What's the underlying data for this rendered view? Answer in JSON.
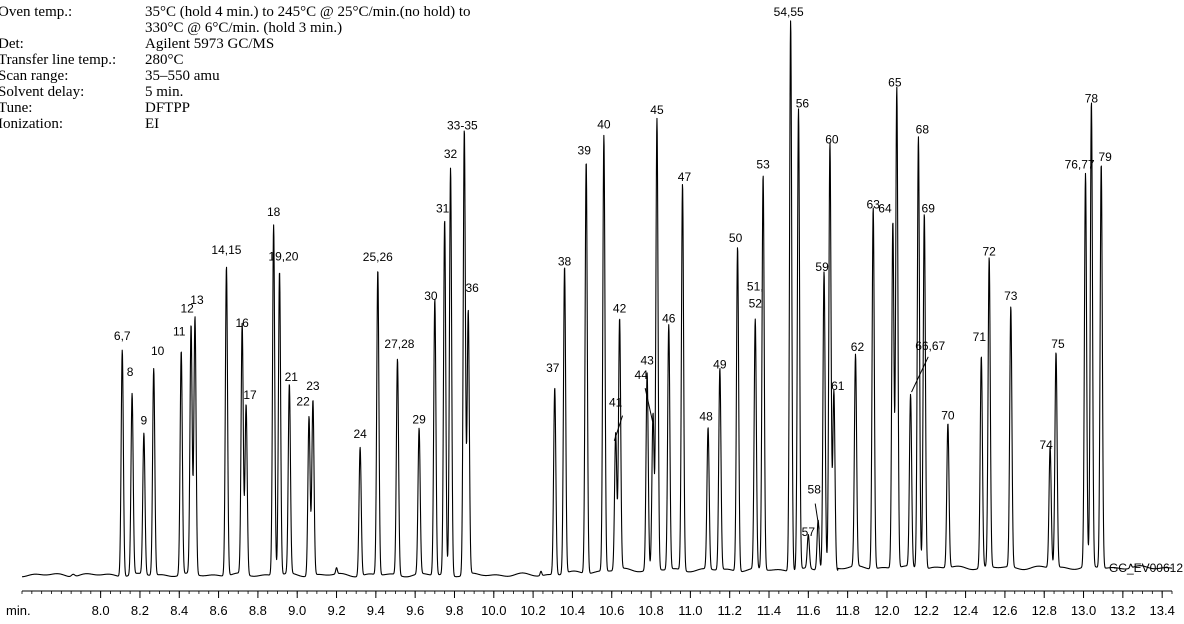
{
  "conditions": [
    {
      "label": "Oven temp.:",
      "value": "35°C (hold 4 min.) to 245°C @ 25°C/min.(no hold) to"
    },
    {
      "label": "",
      "value": "330°C @ 6°C/min. (hold 3 min.)"
    },
    {
      "label": "Det:",
      "value": "Agilent 5973 GC/MS"
    },
    {
      "label": "Transfer line temp.:",
      "value": "280°C"
    },
    {
      "label": "Scan range:",
      "value": "35–550 amu"
    },
    {
      "label": "Solvent delay:",
      "value": "5 min."
    },
    {
      "label": "Tune:",
      "value": "DFTPP"
    },
    {
      "label": "Ionization:",
      "value": "EI"
    }
  ],
  "chart_data": {
    "type": "line",
    "description_axis": "retention time",
    "x_unit_label": "min.",
    "xlim": [
      7.6,
      13.45
    ],
    "ylim": [
      0,
      100
    ],
    "x_ticks": [
      8.0,
      8.2,
      8.4,
      8.6,
      8.8,
      9.0,
      9.2,
      9.4,
      9.6,
      9.8,
      10.0,
      10.2,
      10.4,
      10.6,
      10.8,
      11.0,
      11.2,
      11.4,
      11.6,
      11.8,
      12.0,
      12.2,
      12.4,
      12.6,
      12.8,
      13.0,
      13.2,
      13.4
    ],
    "x_tick_labels": [
      "8.0",
      "8.2",
      "8.4",
      "8.6",
      "8.8",
      "9.0",
      "9.2",
      "9.4",
      "9.6",
      "9.8",
      "10.0",
      "10.2",
      "10.4",
      "10.6",
      "10.8",
      "11.0",
      "11.2",
      "11.4",
      "11.6",
      "11.8",
      "12.0",
      "12.2",
      "12.4",
      "12.6",
      "12.8",
      "13.0",
      "13.2",
      "13.4"
    ],
    "code": "GC_EV00612",
    "peaks": [
      {
        "t": 8.11,
        "h": 40.5
      },
      {
        "t": 8.16,
        "h": 32.3
      },
      {
        "t": 8.22,
        "h": 25.2
      },
      {
        "t": 8.27,
        "h": 36.9
      },
      {
        "t": 8.41,
        "h": 40.0
      },
      {
        "t": 8.46,
        "h": 44.4
      },
      {
        "t": 8.48,
        "h": 46.0
      },
      {
        "t": 8.64,
        "h": 55.3
      },
      {
        "t": 8.72,
        "h": 44.6
      },
      {
        "t": 8.74,
        "h": 30.4
      },
      {
        "t": 8.88,
        "h": 62.6
      },
      {
        "t": 8.91,
        "h": 54.3
      },
      {
        "t": 8.96,
        "h": 33.8
      },
      {
        "t": 9.06,
        "h": 28.5
      },
      {
        "t": 9.08,
        "h": 31.3
      },
      {
        "t": 9.32,
        "h": 23.0
      },
      {
        "t": 9.41,
        "h": 54.5
      },
      {
        "t": 9.51,
        "h": 38.6
      },
      {
        "t": 9.62,
        "h": 26.0
      },
      {
        "t": 9.7,
        "h": 49.3
      },
      {
        "t": 9.75,
        "h": 63.4
      },
      {
        "t": 9.78,
        "h": 72.8
      },
      {
        "t": 9.85,
        "h": 79.6
      },
      {
        "t": 9.87,
        "h": 47.0
      },
      {
        "t": 10.31,
        "h": 33.4
      },
      {
        "t": 10.36,
        "h": 54.9
      },
      {
        "t": 10.47,
        "h": 73.7
      },
      {
        "t": 10.56,
        "h": 77.8
      },
      {
        "t": 10.62,
        "h": 24.5
      },
      {
        "t": 10.64,
        "h": 44.8
      },
      {
        "t": 10.78,
        "h": 35.2
      },
      {
        "t": 10.81,
        "h": 27.8
      },
      {
        "t": 10.83,
        "h": 80.5
      },
      {
        "t": 10.89,
        "h": 43.7
      },
      {
        "t": 10.96,
        "h": 69.1
      },
      {
        "t": 11.09,
        "h": 25.3
      },
      {
        "t": 11.15,
        "h": 36.0
      },
      {
        "t": 11.24,
        "h": 58.0
      },
      {
        "t": 11.33,
        "h": 44.5
      },
      {
        "t": 11.37,
        "h": 70.5
      },
      {
        "t": 11.51,
        "h": 98.4
      },
      {
        "t": 11.55,
        "h": 82.3
      },
      {
        "t": 11.6,
        "h": 6.0
      },
      {
        "t": 11.65,
        "h": 9.0
      },
      {
        "t": 11.68,
        "h": 53.4
      },
      {
        "t": 11.71,
        "h": 76.3
      },
      {
        "t": 11.73,
        "h": 32.0
      },
      {
        "t": 11.84,
        "h": 37.8
      },
      {
        "t": 11.93,
        "h": 64.6
      },
      {
        "t": 12.03,
        "h": 61.9
      },
      {
        "t": 12.05,
        "h": 85.8
      },
      {
        "t": 12.12,
        "h": 30.7
      },
      {
        "t": 12.16,
        "h": 77.2
      },
      {
        "t": 12.19,
        "h": 63.6
      },
      {
        "t": 12.31,
        "h": 25.8
      },
      {
        "t": 12.48,
        "h": 37.8
      },
      {
        "t": 12.52,
        "h": 55.3
      },
      {
        "t": 12.63,
        "h": 46.5
      },
      {
        "t": 12.83,
        "h": 21.6
      },
      {
        "t": 12.86,
        "h": 38.5
      },
      {
        "t": 13.01,
        "h": 70.2
      },
      {
        "t": 13.04,
        "h": 83.0
      },
      {
        "t": 13.09,
        "h": 72.3
      }
    ],
    "annotations": [
      {
        "text": "6,7",
        "t": 8.11,
        "h": 42.5
      },
      {
        "text": "8",
        "t": 8.15,
        "h": 36.1
      },
      {
        "text": "9",
        "t": 8.22,
        "h": 27.4
      },
      {
        "text": "10",
        "t": 8.29,
        "h": 39.8
      },
      {
        "text": "11",
        "t": 8.4,
        "h": 43.3
      },
      {
        "text": "12",
        "t": 8.44,
        "h": 47.4
      },
      {
        "text": "13",
        "t": 8.49,
        "h": 48.9
      },
      {
        "text": "14,15",
        "t": 8.64,
        "h": 57.9
      },
      {
        "text": "16",
        "t": 8.72,
        "h": 44.8
      },
      {
        "text": "17",
        "t": 8.76,
        "h": 32.0
      },
      {
        "text": "18",
        "t": 8.88,
        "h": 64.6
      },
      {
        "text": "19,20",
        "t": 8.93,
        "h": 56.7
      },
      {
        "text": "21",
        "t": 8.97,
        "h": 35.2
      },
      {
        "text": "22",
        "t": 9.03,
        "h": 30.8
      },
      {
        "text": "23",
        "t": 9.08,
        "h": 33.6
      },
      {
        "text": "24",
        "t": 9.32,
        "h": 25.0
      },
      {
        "text": "25,26",
        "t": 9.41,
        "h": 56.6
      },
      {
        "text": "27,28",
        "t": 9.52,
        "h": 41.1
      },
      {
        "text": "29",
        "t": 9.62,
        "h": 27.6
      },
      {
        "text": "30",
        "t": 9.68,
        "h": 49.6
      },
      {
        "text": "31",
        "t": 9.74,
        "h": 65.3
      },
      {
        "text": "32",
        "t": 9.78,
        "h": 75.0
      },
      {
        "text": "33-35",
        "t": 9.84,
        "h": 80.1
      },
      {
        "text": "36",
        "t": 9.89,
        "h": 51.1
      },
      {
        "text": "37",
        "t": 10.3,
        "h": 36.8
      },
      {
        "text": "38",
        "t": 10.36,
        "h": 55.8
      },
      {
        "text": "39",
        "t": 10.46,
        "h": 75.6
      },
      {
        "text": "40",
        "t": 10.56,
        "h": 80.3
      },
      {
        "text": "41",
        "t": 10.62,
        "h": 30.6
      },
      {
        "text": "42",
        "t": 10.64,
        "h": 47.4
      },
      {
        "text": "43",
        "t": 10.78,
        "h": 38.1
      },
      {
        "text": "44",
        "t": 10.75,
        "h": 35.5
      },
      {
        "text": "45",
        "t": 10.83,
        "h": 82.9
      },
      {
        "text": "46",
        "t": 10.89,
        "h": 45.6
      },
      {
        "text": "47",
        "t": 10.97,
        "h": 70.9
      },
      {
        "text": "48",
        "t": 11.08,
        "h": 28.1
      },
      {
        "text": "49",
        "t": 11.15,
        "h": 37.4
      },
      {
        "text": "50",
        "t": 11.23,
        "h": 60.0
      },
      {
        "text": "51,",
        "t": 11.33,
        "h": 51.3
      },
      {
        "text": "52",
        "t": 11.33,
        "h": 48.3
      },
      {
        "text": "53",
        "t": 11.37,
        "h": 73.1
      },
      {
        "text": "54,55",
        "t": 11.5,
        "h": 100.4
      },
      {
        "text": "56",
        "t": 11.57,
        "h": 84.0
      },
      {
        "text": "57",
        "t": 11.6,
        "h": 7.5
      },
      {
        "text": "58",
        "t": 11.63,
        "h": 15.1
      },
      {
        "text": "59",
        "t": 11.67,
        "h": 54.8
      },
      {
        "text": "60",
        "t": 11.72,
        "h": 77.6
      },
      {
        "text": "61",
        "t": 11.75,
        "h": 33.6
      },
      {
        "text": "62",
        "t": 11.85,
        "h": 40.5
      },
      {
        "text": "63",
        "t": 11.93,
        "h": 66.0
      },
      {
        "text": "64",
        "t": 11.99,
        "h": 65.3
      },
      {
        "text": "65",
        "t": 12.04,
        "h": 87.8
      },
      {
        "text": "66,67",
        "t": 12.22,
        "h": 40.7
      },
      {
        "text": "68",
        "t": 12.18,
        "h": 79.4
      },
      {
        "text": "69",
        "t": 12.21,
        "h": 65.3
      },
      {
        "text": "70",
        "t": 12.31,
        "h": 28.3
      },
      {
        "text": "71",
        "t": 12.47,
        "h": 42.3
      },
      {
        "text": "72",
        "t": 12.52,
        "h": 57.6
      },
      {
        "text": "73",
        "t": 12.63,
        "h": 49.6
      },
      {
        "text": "74",
        "t": 12.81,
        "h": 23.0
      },
      {
        "text": "75",
        "t": 12.87,
        "h": 41.1
      },
      {
        "text": "76,77",
        "t": 12.98,
        "h": 73.1
      },
      {
        "text": "78",
        "t": 13.04,
        "h": 84.9
      },
      {
        "text": "79",
        "t": 13.11,
        "h": 74.5
      }
    ],
    "leaders": [
      {
        "from": [
          10.613,
          24.5
        ],
        "to": [
          10.655,
          29.0
        ]
      },
      {
        "from": [
          10.808,
          27.9
        ],
        "to": [
          10.77,
          33.9
        ]
      },
      {
        "from": [
          11.655,
          8.7
        ],
        "to": [
          11.635,
          13.3
        ]
      },
      {
        "from": [
          12.125,
          33.2
        ],
        "to": [
          12.21,
          39.5
        ]
      }
    ]
  }
}
